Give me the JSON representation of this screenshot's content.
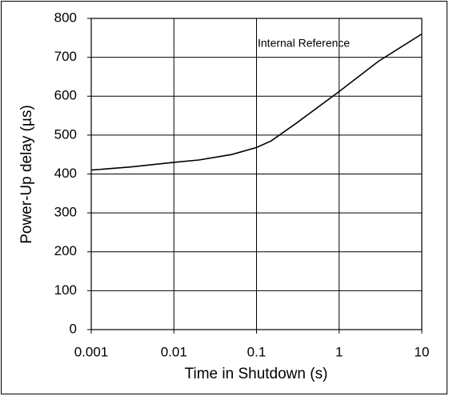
{
  "chart_data": {
    "type": "line",
    "xlabel": "Time in Shutdown (s)",
    "ylabel": "Power-Up delay (µs)",
    "annotation": "Internal Reference",
    "xscale": "log",
    "x": [
      0.001,
      0.003,
      0.01,
      0.02,
      0.05,
      0.1,
      0.15,
      0.3,
      1,
      3,
      10
    ],
    "series": [
      {
        "color": "#000000",
        "values": [
          410,
          418,
          430,
          436,
          450,
          468,
          485,
          530,
          612,
          690,
          760
        ]
      }
    ],
    "xlim": [
      0.001,
      10
    ],
    "xticks": [
      0.001,
      0.01,
      0.1,
      1,
      10
    ],
    "ylim": [
      0,
      800
    ],
    "yticks": [
      0,
      100,
      200,
      300,
      400,
      500,
      600,
      700,
      800
    ],
    "grid": true
  }
}
